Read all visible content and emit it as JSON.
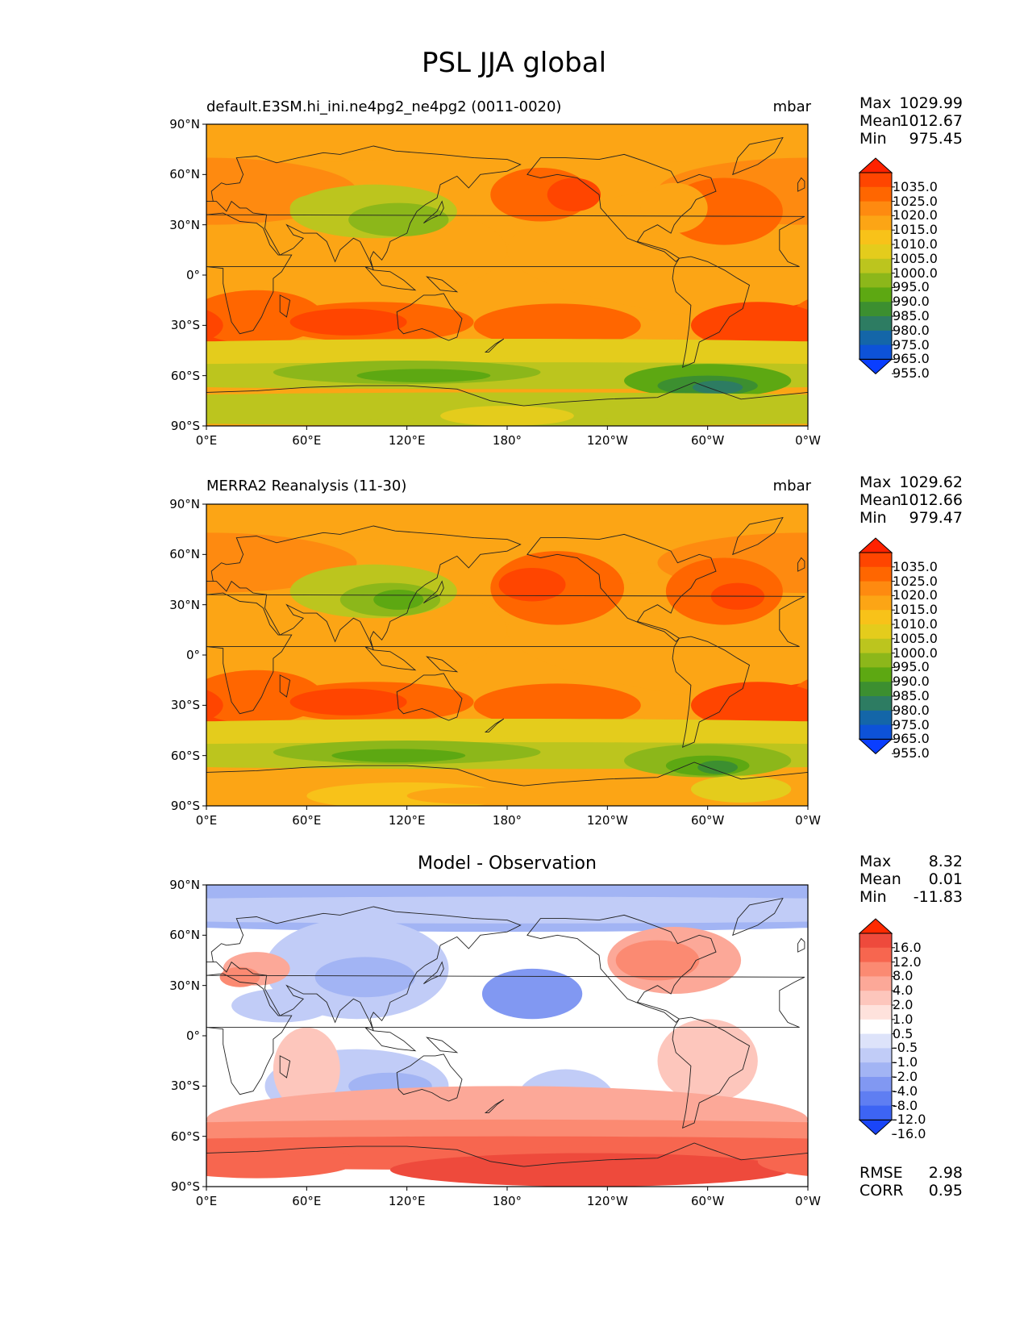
{
  "figure": {
    "title": "PSL JJA global"
  },
  "axes": {
    "lat_labels": [
      "90°N",
      "60°N",
      "30°N",
      "0°",
      "30°S",
      "60°S",
      "90°S"
    ],
    "lon_labels": [
      "0°E",
      "60°E",
      "120°E",
      "180°",
      "120°W",
      "60°W",
      "0°W"
    ]
  },
  "panels": [
    {
      "title_left": "default.E3SM.hi_ini.ne4pg2_ne4pg2 (0011-0020)",
      "title_center": "",
      "units": "mbar",
      "stats": [
        {
          "label": "Max",
          "value": "1029.99"
        },
        {
          "label": "Mean",
          "value": "1012.67"
        },
        {
          "label": "Min",
          "value": "975.45"
        }
      ],
      "colorbar": {
        "ticks": [
          "1035.0",
          "1025.0",
          "1020.0",
          "1015.0",
          "1010.0",
          "1005.0",
          "1000.0",
          "995.0",
          "990.0",
          "985.0",
          "980.0",
          "975.0",
          "965.0",
          "955.0"
        ],
        "colors": [
          "#ff2200",
          "#ff4500",
          "#ff6600",
          "#fe8a10",
          "#fca515",
          "#f8c219",
          "#e4cc1c",
          "#bcc51e",
          "#8cb71a",
          "#5da812",
          "#3c8f30",
          "#2d7c62",
          "#1466a8",
          "#0d52d8",
          "#0a3eff"
        ]
      },
      "ranges": {
        "max": 1029.99,
        "mean": 1012.67,
        "min": 975.45
      }
    },
    {
      "title_left": "MERRA2 Reanalysis (11-30)",
      "title_center": "",
      "units": "mbar",
      "stats": [
        {
          "label": "Max",
          "value": "1029.62"
        },
        {
          "label": "Mean",
          "value": "1012.66"
        },
        {
          "label": "Min",
          "value": "979.47"
        }
      ],
      "colorbar": {
        "ticks": [
          "1035.0",
          "1025.0",
          "1020.0",
          "1015.0",
          "1010.0",
          "1005.0",
          "1000.0",
          "995.0",
          "990.0",
          "985.0",
          "980.0",
          "975.0",
          "965.0",
          "955.0"
        ],
        "colors": [
          "#ff2200",
          "#ff4500",
          "#ff6600",
          "#fe8a10",
          "#fca515",
          "#f8c219",
          "#e4cc1c",
          "#bcc51e",
          "#8cb71a",
          "#5da812",
          "#3c8f30",
          "#2d7c62",
          "#1466a8",
          "#0d52d8",
          "#0a3eff"
        ]
      },
      "ranges": {
        "max": 1029.62,
        "mean": 1012.66,
        "min": 979.47
      }
    },
    {
      "title_left": "",
      "title_center": "Model - Observation",
      "units": "",
      "stats": [
        {
          "label": "Max",
          "value": "8.32"
        },
        {
          "label": "Mean",
          "value": "0.01"
        },
        {
          "label": "Min",
          "value": "-11.83"
        }
      ],
      "metrics": [
        {
          "label": "RMSE",
          "value": "2.98"
        },
        {
          "label": "CORR",
          "value": "0.95"
        }
      ],
      "colorbar": {
        "ticks": [
          "16.0",
          "12.0",
          "8.0",
          "4.0",
          "2.0",
          "1.0",
          "0.5",
          "-0.5",
          "-1.0",
          "-2.0",
          "-4.0",
          "-8.0",
          "-12.0",
          "-16.0"
        ],
        "colors": [
          "#ff2a00",
          "#ee4a3c",
          "#f7664f",
          "#fb8a72",
          "#fca898",
          "#fdc6bc",
          "#fee2dc",
          "#ffffff",
          "#dde3fa",
          "#c1ccf7",
          "#a2b4f4",
          "#8198f2",
          "#5f7ef2",
          "#3d64f4",
          "#1a45f8"
        ]
      },
      "ranges": {
        "max": 8.32,
        "mean": 0.01,
        "min": -11.83
      }
    }
  ]
}
